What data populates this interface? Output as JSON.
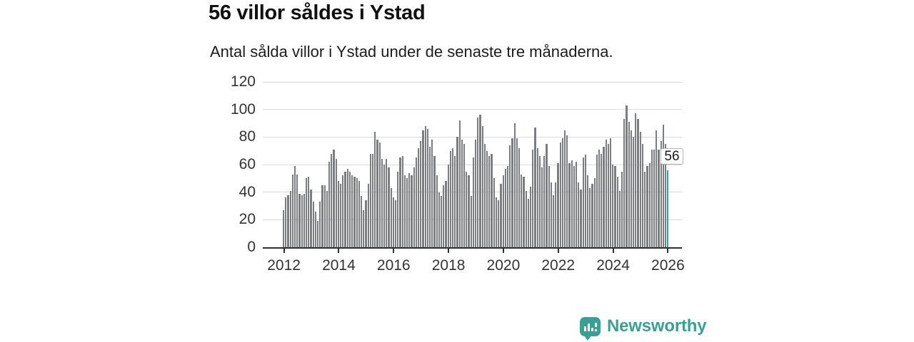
{
  "header": {
    "title": "56 villor såldes i Ystad",
    "subtitle": "Antal sålda villor i Ystad under de senaste tre månaderna."
  },
  "branding": {
    "logo_text": "Newsworthy",
    "logo_color": "#3aa096",
    "logo_icon": "bar-chart-speech-bubble-icon"
  },
  "chart_data": {
    "type": "bar",
    "title": "56 villor såldes i Ystad",
    "subtitle": "Antal sålda villor i Ystad under de senaste tre månaderna.",
    "xlabel": "",
    "ylabel": "",
    "ylim": [
      0,
      120
    ],
    "yticks": [
      0,
      20,
      40,
      60,
      80,
      100,
      120
    ],
    "xticks": [
      "2012",
      "2014",
      "2016",
      "2018",
      "2020",
      "2022",
      "2024",
      "2026"
    ],
    "x_tick_every_bars": 24,
    "frequency": "monthly",
    "grid": "horizontal",
    "bar_color": "#7a7d82",
    "highlight_color": "#28a8a3",
    "highlight_index": 168,
    "annotation": {
      "text": "56",
      "value": 56
    },
    "values": [
      27,
      36,
      38,
      41,
      53,
      59,
      53,
      39,
      38,
      39,
      50,
      51,
      42,
      33,
      26,
      19,
      33,
      45,
      45,
      41,
      62,
      68,
      71,
      64,
      48,
      46,
      52,
      55,
      57,
      55,
      52,
      51,
      50,
      48,
      37,
      27,
      34,
      46,
      68,
      68,
      84,
      78,
      76,
      64,
      60,
      64,
      58,
      43,
      36,
      34,
      55,
      65,
      66,
      52,
      50,
      54,
      52,
      58,
      65,
      72,
      77,
      85,
      88,
      86,
      73,
      78,
      66,
      52,
      40,
      37,
      45,
      48,
      60,
      70,
      72,
      66,
      80,
      92,
      78,
      75,
      55,
      52,
      37,
      65,
      78,
      94,
      96,
      88,
      75,
      70,
      66,
      68,
      50,
      36,
      34,
      46,
      52,
      57,
      59,
      74,
      79,
      90,
      79,
      72,
      53,
      51,
      41,
      35,
      44,
      71,
      87,
      72,
      66,
      58,
      66,
      75,
      59,
      47,
      38,
      47,
      61,
      76,
      79,
      85,
      81,
      61,
      63,
      59,
      62,
      47,
      42,
      65,
      67,
      52,
      43,
      46,
      50,
      67,
      71,
      68,
      73,
      78,
      75,
      79,
      60,
      59,
      51,
      41,
      55,
      93,
      103,
      91,
      85,
      80,
      97,
      93,
      84,
      75,
      55,
      59,
      61,
      71,
      71,
      85,
      71,
      77,
      89,
      75,
      56
    ]
  }
}
